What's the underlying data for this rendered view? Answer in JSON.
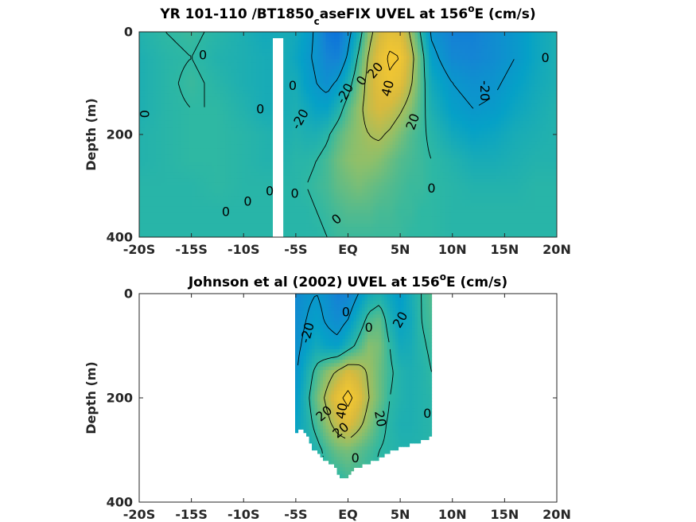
{
  "chart_data": [
    {
      "type": "heatmap",
      "title": "YR 101-110 /BT1850_caseFIX UVEL at 156°E (cm/s)",
      "title_parts": {
        "a": "YR 101-110 /BT1850",
        "sub": "c",
        "b": "aseFIX UVEL at 156",
        "sup": "o",
        "c": "E (cm/s)"
      },
      "ylabel": "Depth (m)",
      "xlim": [
        -20,
        20
      ],
      "ylim": [
        0,
        400
      ],
      "y_reversed": true,
      "x_ticks": [
        -20,
        -15,
        -10,
        -5,
        0,
        5,
        10,
        15,
        20
      ],
      "x_tick_labels": [
        "-20S",
        "-15S",
        "-10S",
        "-5S",
        "EQ",
        "5N",
        "10N",
        "15N",
        "20N"
      ],
      "y_ticks": [
        0,
        200,
        400
      ],
      "y_tick_labels": [
        "0",
        "200",
        "400"
      ],
      "colormap": "parula",
      "color_range": [
        -60,
        60
      ],
      "x": [
        -20,
        -17.5,
        -15,
        -12.5,
        -10,
        -8,
        -6,
        -5,
        -4,
        -3,
        -2,
        -1,
        0,
        1,
        2,
        3,
        4,
        5,
        6,
        7,
        8,
        10,
        12,
        14,
        16,
        18,
        20
      ],
      "depth": [
        0,
        50,
        100,
        150,
        200,
        250,
        300,
        350,
        400
      ],
      "uvel_cm_s": [
        [
          -4,
          0,
          2,
          -2,
          -6,
          -10,
          -8,
          -10,
          -16,
          -22,
          -35,
          -38,
          -25,
          -8,
          15,
          28,
          34,
          32,
          18,
          -2,
          -22,
          -32,
          -32,
          -26,
          -20,
          -12,
          -6
        ],
        [
          -6,
          -2,
          0,
          -4,
          -6,
          -8,
          -8,
          -12,
          -18,
          -22,
          -30,
          -32,
          -18,
          2,
          22,
          34,
          42,
          40,
          26,
          6,
          -16,
          -28,
          -30,
          -26,
          -20,
          -12,
          -6
        ],
        [
          -6,
          -2,
          2,
          -2,
          -6,
          -8,
          -8,
          -8,
          -16,
          -20,
          -24,
          -18,
          -6,
          10,
          26,
          34,
          38,
          34,
          22,
          6,
          -10,
          -20,
          -24,
          -22,
          -16,
          -10,
          -6
        ],
        [
          -6,
          -2,
          0,
          0,
          -4,
          -8,
          -8,
          -6,
          -10,
          -14,
          -14,
          -6,
          6,
          16,
          26,
          30,
          28,
          22,
          14,
          4,
          -6,
          -16,
          -20,
          -18,
          -12,
          -8,
          -4
        ],
        [
          -4,
          -2,
          0,
          0,
          -2,
          -4,
          -6,
          -4,
          -6,
          -6,
          -2,
          6,
          12,
          16,
          20,
          22,
          18,
          12,
          6,
          2,
          -2,
          -10,
          -14,
          -12,
          -8,
          -6,
          -4
        ],
        [
          -4,
          -2,
          0,
          0,
          -2,
          -4,
          -4,
          -2,
          -2,
          0,
          4,
          10,
          14,
          16,
          16,
          14,
          10,
          6,
          4,
          2,
          0,
          -4,
          -8,
          -8,
          -6,
          -4,
          -4
        ],
        [
          -2,
          -2,
          -2,
          0,
          -2,
          -2,
          -2,
          -2,
          0,
          2,
          4,
          8,
          10,
          12,
          10,
          8,
          6,
          4,
          2,
          2,
          0,
          -2,
          -4,
          -4,
          -4,
          -2,
          -2
        ],
        [
          -2,
          -2,
          -2,
          -2,
          -2,
          -2,
          -2,
          -2,
          -2,
          0,
          2,
          4,
          6,
          6,
          6,
          4,
          4,
          2,
          2,
          0,
          0,
          -2,
          -2,
          -2,
          -2,
          -2,
          -2
        ],
        [
          -2,
          -2,
          -2,
          -2,
          -2,
          -2,
          -2,
          -2,
          -2,
          -2,
          0,
          2,
          2,
          2,
          2,
          2,
          2,
          2,
          0,
          0,
          0,
          -2,
          -2,
          -2,
          -2,
          -2,
          -2
        ]
      ],
      "masked_band_x": [
        -7.2,
        -6.2
      ],
      "contour_labels": [
        {
          "text": "0",
          "x": -19.5,
          "d": 160,
          "rot": 90
        },
        {
          "text": "0",
          "x": -13.9,
          "d": 45,
          "rot": 0
        },
        {
          "text": "0",
          "x": -11.7,
          "d": 350,
          "rot": 0
        },
        {
          "text": "0",
          "x": -9.6,
          "d": 330,
          "rot": 0
        },
        {
          "text": "0",
          "x": -8.4,
          "d": 150,
          "rot": 0
        },
        {
          "text": "0",
          "x": -7.5,
          "d": 310,
          "rot": 0
        },
        {
          "text": "0",
          "x": -5.3,
          "d": 105,
          "rot": 0
        },
        {
          "text": "0",
          "x": -5.1,
          "d": 315,
          "rot": 0
        },
        {
          "text": "0",
          "x": -1.1,
          "d": 365,
          "rot": -40
        },
        {
          "text": "-20",
          "x": -4.6,
          "d": 170,
          "rot": -60
        },
        {
          "text": "-20",
          "x": -0.3,
          "d": 120,
          "rot": -60
        },
        {
          "text": "0",
          "x": 1.3,
          "d": 95,
          "rot": -55
        },
        {
          "text": "20",
          "x": 2.6,
          "d": 75,
          "rot": -50
        },
        {
          "text": "40",
          "x": 3.8,
          "d": 110,
          "rot": -75
        },
        {
          "text": "20",
          "x": 6.2,
          "d": 175,
          "rot": -70
        },
        {
          "text": "0",
          "x": 8.0,
          "d": 305,
          "rot": 0
        },
        {
          "text": "-20",
          "x": 13.1,
          "d": 115,
          "rot": 90
        },
        {
          "text": "0",
          "x": 18.9,
          "d": 50,
          "rot": 0
        }
      ]
    },
    {
      "type": "heatmap",
      "title": "Johnson et al (2002) UVEL at 156°E (cm/s)",
      "title_parts": {
        "a": "Johnson et al (2002) UVEL at 156",
        "sup": "o",
        "c": "E (cm/s)"
      },
      "ylabel": "Depth (m)",
      "xlim": [
        -20,
        20
      ],
      "ylim": [
        0,
        400
      ],
      "y_reversed": true,
      "x_ticks": [
        -20,
        -15,
        -10,
        -5,
        0,
        5,
        10,
        15,
        20
      ],
      "x_tick_labels": [
        "-20S",
        "-15S",
        "-10S",
        "-5S",
        "EQ",
        "5N",
        "10N",
        "15N",
        "20N"
      ],
      "y_ticks": [
        0,
        200,
        400
      ],
      "y_tick_labels": [
        "0",
        "200",
        "400"
      ],
      "colormap": "parula",
      "color_range": [
        -60,
        60
      ],
      "data_lon_range": [
        -5,
        8
      ],
      "x": [
        -5,
        -4,
        -3,
        -2,
        -1,
        0,
        1,
        2,
        3,
        4,
        5,
        6,
        7,
        8
      ],
      "depth": [
        0,
        50,
        100,
        150,
        200,
        250,
        300,
        350
      ],
      "uvel_cm_s": [
        [
          -28,
          -22,
          -20,
          -24,
          -32,
          -30,
          -20,
          -10,
          -6,
          -12,
          -18,
          -8,
          0,
          6
        ],
        [
          -26,
          -20,
          -16,
          -22,
          -26,
          -20,
          -8,
          4,
          8,
          -6,
          -14,
          -10,
          0,
          4
        ],
        [
          -24,
          -16,
          -10,
          -14,
          -16,
          -6,
          4,
          14,
          12,
          0,
          -10,
          -8,
          -2,
          2
        ],
        [
          -22,
          -8,
          4,
          14,
          22,
          30,
          26,
          18,
          10,
          2,
          -4,
          -6,
          -4,
          0
        ],
        [
          -18,
          -4,
          10,
          24,
          36,
          44,
          34,
          20,
          10,
          0,
          -4,
          -6,
          -4,
          -2
        ],
        [
          -14,
          -6,
          4,
          16,
          26,
          32,
          24,
          14,
          4,
          -2,
          -6,
          -6,
          -4,
          -2
        ],
        [
          -10,
          -8,
          -4,
          4,
          10,
          12,
          8,
          4,
          0,
          -2,
          -4,
          -4,
          -4,
          -2
        ],
        [
          -6,
          -6,
          -4,
          -2,
          0,
          4,
          2,
          0,
          -2,
          -2,
          -2,
          -2,
          -2,
          -2
        ]
      ],
      "bottom_depth_by_x": [
        [
          -5,
          265
        ],
        [
          -4.4,
          262
        ],
        [
          -4.0,
          270
        ],
        [
          -3.6,
          290
        ],
        [
          -3.0,
          305
        ],
        [
          -2.2,
          320
        ],
        [
          -1.4,
          330
        ],
        [
          -0.8,
          348
        ],
        [
          -0.4,
          355
        ],
        [
          0.1,
          348
        ],
        [
          0.6,
          335
        ],
        [
          1.2,
          330
        ],
        [
          2.0,
          325
        ],
        [
          2.8,
          318
        ],
        [
          3.5,
          310
        ],
        [
          4.4,
          300
        ],
        [
          5.4,
          292
        ],
        [
          6.4,
          288
        ],
        [
          7.4,
          280
        ],
        [
          8,
          275
        ]
      ],
      "contour_labels": [
        {
          "text": "-20",
          "x": -3.9,
          "d": 75,
          "rot": -75
        },
        {
          "text": "0",
          "x": -0.2,
          "d": 35,
          "rot": 0
        },
        {
          "text": "0",
          "x": 2.0,
          "d": 65,
          "rot": 0
        },
        {
          "text": "20",
          "x": 5.0,
          "d": 50,
          "rot": -60
        },
        {
          "text": "20",
          "x": -2.3,
          "d": 230,
          "rot": -40
        },
        {
          "text": "40",
          "x": -0.6,
          "d": 225,
          "rot": -80
        },
        {
          "text": "20",
          "x": -0.7,
          "d": 262,
          "rot": -40
        },
        {
          "text": "20",
          "x": 3.1,
          "d": 240,
          "rot": 80
        },
        {
          "text": "0",
          "x": 7.6,
          "d": 230,
          "rot": 0
        },
        {
          "text": "0",
          "x": 0.7,
          "d": 315,
          "rot": 0
        }
      ]
    }
  ]
}
